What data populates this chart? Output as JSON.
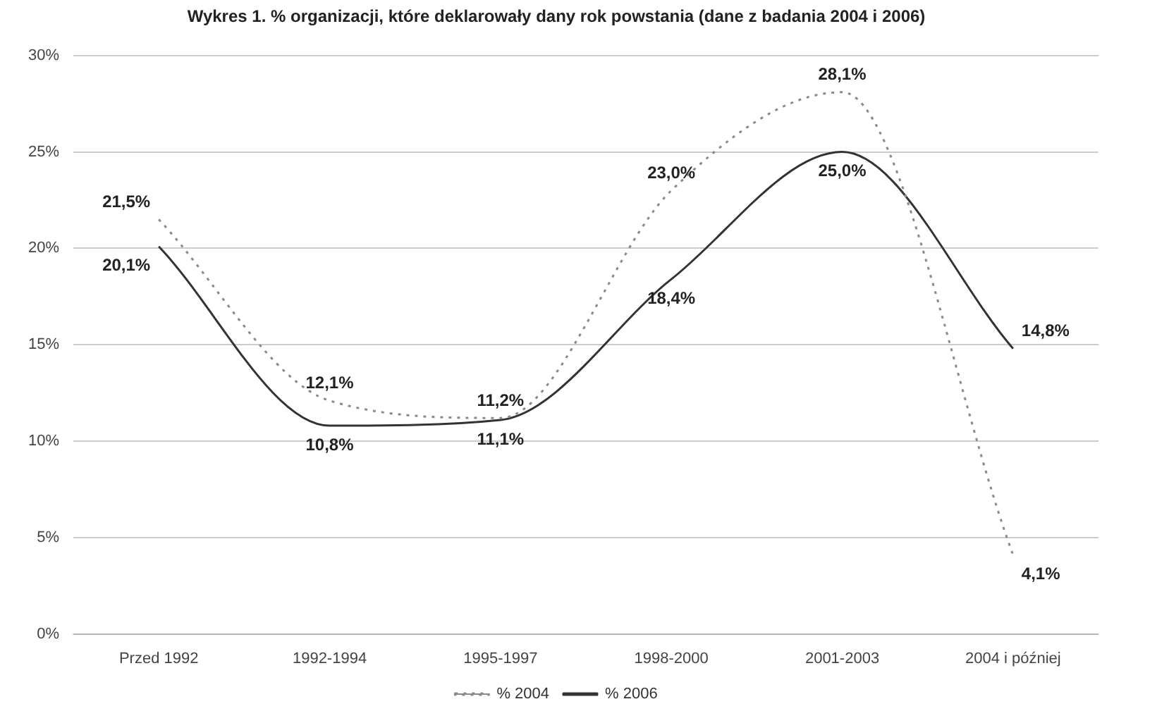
{
  "chart_data": {
    "type": "line",
    "title": "Wykres 1. % organizacji, które deklarowały dany rok powstania (dane z badania 2004 i 2006)",
    "categories": [
      "Przed 1992",
      "1992-1994",
      "1995-1997",
      "1998-2000",
      "2001-2003",
      "2004 i później"
    ],
    "series": [
      {
        "name": "% 2004",
        "color": "#8a8a8a",
        "line_style": "dotted",
        "values": [
          21.5,
          12.1,
          11.2,
          23.0,
          28.1,
          4.1
        ],
        "value_labels": [
          "21,5%",
          "12,1%",
          "11,2%",
          "23,0%",
          "28,1%",
          "4,1%"
        ]
      },
      {
        "name": "% 2006",
        "color": "#333333",
        "line_style": "solid",
        "values": [
          20.1,
          10.8,
          11.1,
          18.4,
          25.0,
          14.8
        ],
        "value_labels": [
          "20,1%",
          "10,8%",
          "11,1%",
          "18,4%",
          "25,0%",
          "14,8%"
        ]
      }
    ],
    "ylim": [
      0,
      30
    ],
    "yticks": [
      {
        "value": 0,
        "label": "0%"
      },
      {
        "value": 5,
        "label": "5%"
      },
      {
        "value": 10,
        "label": "10%"
      },
      {
        "value": 15,
        "label": "15%"
      },
      {
        "value": 20,
        "label": "20%"
      },
      {
        "value": 25,
        "label": "25%"
      },
      {
        "value": 30,
        "label": "30%"
      }
    ],
    "grid": "y",
    "legend": "bottom",
    "marker": "none"
  }
}
